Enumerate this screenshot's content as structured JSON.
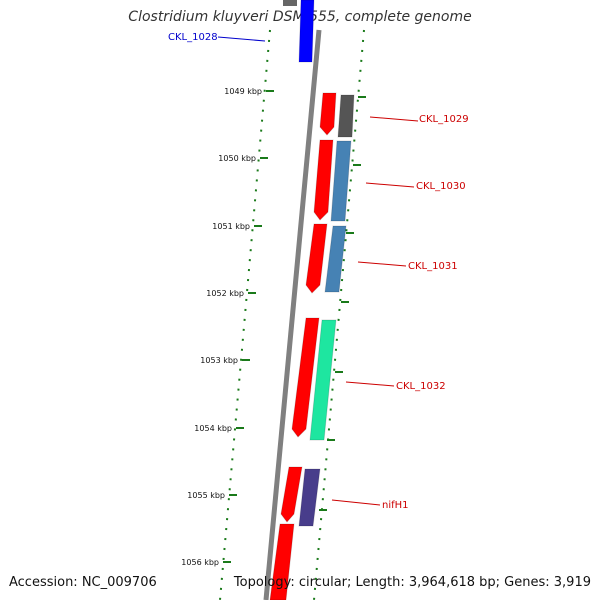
{
  "title": "Clostridium kluyveri DSM 555, complete genome",
  "accession": "Accession: NC_009706",
  "summary": "Topology: circular; Length: 3,964,618 bp; Genes: 3,919",
  "colors": {
    "backbone": "#808080",
    "tick": "#1a7a1a",
    "label_blue": "#0000cc",
    "label_red": "#cc0000",
    "cds": "#ff0000",
    "gene_blue": "#0000ff",
    "gene_gray": "#555555",
    "gene_steel": "#4682b4",
    "gene_aqua": "#1ee6a0",
    "gene_purple": "#483d8b"
  },
  "scale_ticks": [
    "1049 kbp",
    "1050 kbp",
    "1051 kbp",
    "1052 kbp",
    "1053 kbp",
    "1054 kbp",
    "1055 kbp",
    "1056 kbp"
  ],
  "genes": [
    {
      "label": "CKL_1028",
      "label_color": "label_blue"
    },
    {
      "label": "CKL_1029",
      "label_color": "label_red"
    },
    {
      "label": "CKL_1030",
      "label_color": "label_red"
    },
    {
      "label": "CKL_1031",
      "label_color": "label_red"
    },
    {
      "label": "CKL_1032",
      "label_color": "label_red"
    },
    {
      "label": "nifH1",
      "label_color": "label_red"
    }
  ]
}
